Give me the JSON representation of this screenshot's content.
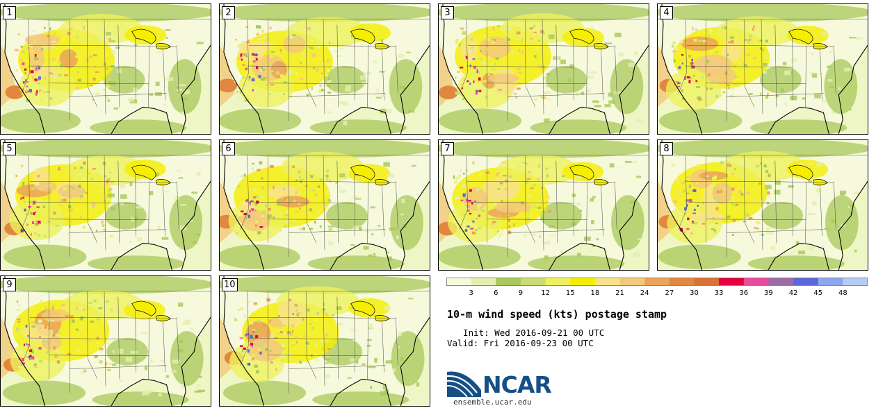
{
  "title": "10-m wind speed (kts) postage stamp",
  "init": "  Init: Wed 2016-09-21 00 UTC",
  "valid": "Valid: Fri 2016-09-23 00 UTC",
  "org": "NCAR",
  "site": "ensemble.ucar.edu",
  "members": [
    "1",
    "2",
    "3",
    "4",
    "5",
    "6",
    "7",
    "8",
    "9",
    "10"
  ],
  "colorbar": {
    "ticks": [
      "3",
      "6",
      "9",
      "12",
      "15",
      "18",
      "21",
      "24",
      "27",
      "30",
      "33",
      "36",
      "39",
      "42",
      "45",
      "48"
    ],
    "colors": [
      "#f6f9dc",
      "#e3efb0",
      "#a8c85a",
      "#c9dd70",
      "#eef15d",
      "#f5ee00",
      "#f8e38a",
      "#f3c97c",
      "#eba358",
      "#e2873f",
      "#d87236",
      "#e3003e",
      "#e84d9c",
      "#9a6da5",
      "#5c66d8",
      "#8ba8ec",
      "#b7cbf2"
    ]
  }
}
